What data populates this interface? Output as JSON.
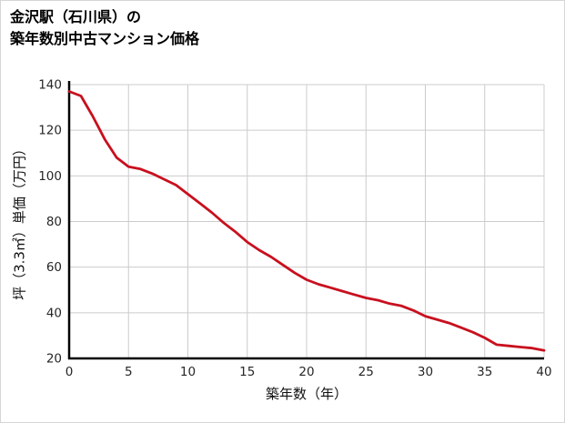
{
  "page": {
    "title_line1": "金沢駅（石川県）の",
    "title_line2": "築年数別中古マンション価格"
  },
  "chart_data": {
    "type": "line",
    "title": "金沢駅（石川県）の築年数別中古マンション価格",
    "xlabel": "築年数（年）",
    "ylabel": "坪（3.3㎡）単価（万円）",
    "xlim": [
      0,
      40
    ],
    "ylim": [
      20,
      140
    ],
    "xticks": [
      0,
      5,
      10,
      15,
      20,
      25,
      30,
      35,
      40
    ],
    "yticks": [
      20,
      40,
      60,
      80,
      100,
      120,
      140
    ],
    "grid": true,
    "legend_position": "none",
    "line_color": "#c8101e",
    "grid_color": "#cccccc",
    "axis_color": "#000000",
    "tick_label_color": "#262626",
    "x": [
      0,
      1,
      2,
      3,
      4,
      5,
      6,
      7,
      8,
      9,
      10,
      11,
      12,
      13,
      14,
      15,
      16,
      17,
      18,
      19,
      20,
      21,
      22,
      23,
      24,
      25,
      26,
      27,
      28,
      29,
      30,
      31,
      32,
      33,
      34,
      35,
      36,
      37,
      38,
      39,
      40
    ],
    "y": [
      137,
      135,
      126,
      116,
      108,
      104,
      103,
      101,
      98.5,
      96,
      92,
      88,
      84,
      79.5,
      75.5,
      71,
      67.5,
      64.5,
      61,
      57.5,
      54.5,
      52.5,
      51,
      49.5,
      48,
      46.5,
      45.5,
      44,
      43,
      41,
      38.5,
      37,
      35.5,
      33.5,
      31.5,
      29,
      26,
      25.5,
      25,
      24.5,
      23.5
    ]
  }
}
